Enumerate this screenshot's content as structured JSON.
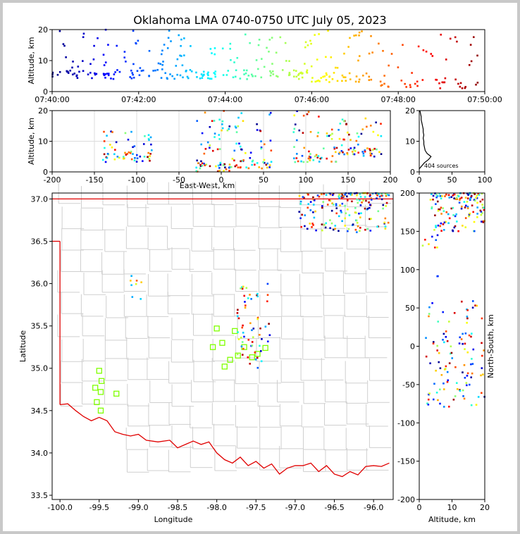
{
  "title": "Oklahoma LMA 0740-0750 UTC July 05, 2023",
  "chart_data": [
    {
      "id": "time_height",
      "type": "scatter",
      "xlabel": "",
      "ylabel": "Altitude, km",
      "x_ticks": [
        "07:40:00",
        "07:42:00",
        "07:44:00",
        "07:46:00",
        "07:48:00",
        "07:50:00"
      ],
      "xlim_minutes": [
        0,
        10
      ],
      "ylim": [
        0,
        20
      ],
      "y_ticks": [
        0,
        10,
        20
      ],
      "color_scale": "jet, by time",
      "clusters": [
        {
          "t": [
            0.0,
            1.5
          ],
          "z": [
            4,
            20
          ]
        },
        {
          "t": [
            1.5,
            3.0
          ],
          "z": [
            4,
            20
          ]
        },
        {
          "t": [
            3.0,
            4.6
          ],
          "z": [
            4,
            19
          ]
        },
        {
          "t": [
            4.6,
            6.0
          ],
          "z": [
            4,
            18
          ]
        },
        {
          "t": [
            6.0,
            7.5
          ],
          "z": [
            3,
            20
          ]
        },
        {
          "t": [
            7.5,
            9.9
          ],
          "z": [
            1,
            19
          ]
        }
      ]
    },
    {
      "id": "ew_height",
      "type": "scatter",
      "xlabel": "East-West, km",
      "ylabel": "Altitude, km",
      "xlim": [
        -200,
        200
      ],
      "x_ticks": [
        -200,
        -150,
        -100,
        -50,
        0,
        50,
        100,
        150,
        200
      ],
      "ylim": [
        0,
        20
      ],
      "y_ticks": [
        0,
        10,
        20
      ],
      "clusters": [
        {
          "x": [
            -140,
            -80
          ],
          "z": [
            3,
            14
          ]
        },
        {
          "x": [
            -30,
            10
          ],
          "z": [
            0,
            20
          ]
        },
        {
          "x": [
            10,
            60
          ],
          "z": [
            1,
            20
          ]
        },
        {
          "x": [
            85,
            140
          ],
          "z": [
            3,
            20
          ]
        },
        {
          "x": [
            140,
            190
          ],
          "z": [
            5,
            19
          ]
        }
      ]
    },
    {
      "id": "histogram",
      "type": "line",
      "xlim": [
        0,
        100
      ],
      "x_ticks": [
        0,
        50,
        100
      ],
      "ylim": [
        0,
        20
      ],
      "y_ticks": [
        0,
        10,
        20
      ],
      "annotation": "404 sources",
      "profile": [
        [
          0,
          1
        ],
        [
          8,
          3
        ],
        [
          14,
          4
        ],
        [
          18,
          5
        ],
        [
          12,
          6
        ],
        [
          9,
          7
        ],
        [
          8,
          8
        ],
        [
          7,
          9
        ],
        [
          7,
          10
        ],
        [
          6,
          11
        ],
        [
          7,
          12
        ],
        [
          6,
          13
        ],
        [
          6,
          14
        ],
        [
          5,
          15
        ],
        [
          4,
          16
        ],
        [
          3,
          17
        ],
        [
          3,
          18
        ],
        [
          2,
          19
        ],
        [
          1,
          20
        ]
      ]
    },
    {
      "id": "plan_view",
      "type": "scatter",
      "xlabel": "Longitude",
      "ylabel": "Latitude",
      "xlim": [
        -100.1,
        -95.75
      ],
      "x_ticks": [
        -100.0,
        -99.5,
        -99.0,
        -98.5,
        -98.0,
        -97.5,
        -97.0,
        -96.5,
        -96.0
      ],
      "ylim": [
        33.45,
        37.07
      ],
      "y_ticks": [
        33.5,
        34.0,
        34.5,
        35.0,
        35.5,
        36.0,
        36.5,
        37.0
      ],
      "stations": [
        [
          -99.5,
          34.97
        ],
        [
          -99.47,
          34.85
        ],
        [
          -99.55,
          34.77
        ],
        [
          -99.48,
          34.72
        ],
        [
          -99.53,
          34.6
        ],
        [
          -99.48,
          34.5
        ],
        [
          -99.28,
          34.7
        ],
        [
          -98.05,
          35.25
        ],
        [
          -98.0,
          35.47
        ],
        [
          -97.93,
          35.3
        ],
        [
          -97.9,
          35.02
        ],
        [
          -97.83,
          35.1
        ],
        [
          -97.77,
          35.44
        ],
        [
          -97.73,
          35.15
        ],
        [
          -97.65,
          35.25
        ],
        [
          -97.55,
          35.13
        ],
        [
          -97.48,
          35.17
        ],
        [
          -97.38,
          35.24
        ]
      ],
      "clusters": [
        {
          "lon": [
            -96.95,
            -95.8
          ],
          "lat": [
            36.6,
            37.07
          ]
        },
        {
          "lon": [
            -97.75,
            -97.3
          ],
          "lat": [
            35.0,
            36.0
          ]
        },
        {
          "lon": [
            -99.1,
            -98.95
          ],
          "lat": [
            35.8,
            36.15
          ]
        }
      ]
    },
    {
      "id": "ns_height",
      "type": "scatter",
      "xlabel": "Altitude, km",
      "ylabel": "North-South, km",
      "xlim": [
        0,
        20
      ],
      "x_ticks": [
        0,
        10,
        20
      ],
      "ylim": [
        -200,
        200
      ],
      "y_ticks": [
        -200,
        -150,
        -100,
        -50,
        0,
        50,
        100,
        150,
        200
      ],
      "clusters": [
        {
          "z": [
            3,
            20
          ],
          "y": [
            150,
            200
          ]
        },
        {
          "z": [
            2,
            20
          ],
          "y": [
            -80,
            60
          ]
        },
        {
          "z": [
            1,
            6
          ],
          "y": [
            90,
            150
          ]
        }
      ]
    }
  ]
}
